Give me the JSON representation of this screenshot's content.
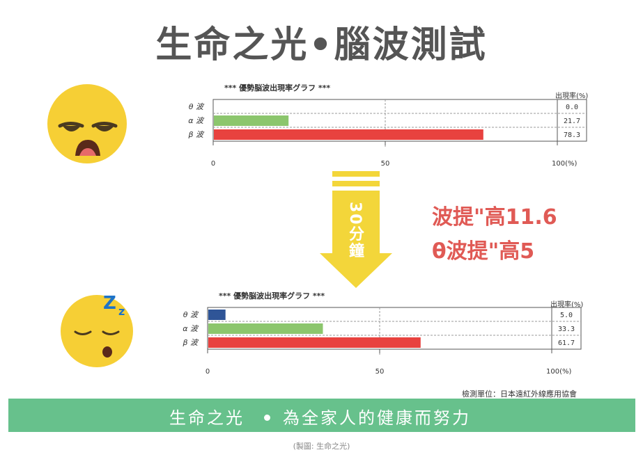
{
  "title": "生命之光•腦波測試",
  "charts_meta": {
    "chart_title": "***  優勢脳波出現率グラフ  ***",
    "rate_header": "出現率",
    "rate_unit": "(%)",
    "xticks": [
      "0",
      "50",
      "100"
    ],
    "x_end_unit": "(%)"
  },
  "chart_data": [
    {
      "type": "bar",
      "title": "***  優勢脳波出現率グラフ  ***",
      "categories": [
        "θ 波",
        "α 波",
        "β 波"
      ],
      "values": [
        0.0,
        21.7,
        78.3
      ],
      "value_labels": [
        "0.0",
        "21.7",
        "78.3"
      ],
      "colors": [
        "#2f5597",
        "#8cc66d",
        "#e8423f"
      ],
      "xlim": [
        0,
        100
      ],
      "xlabel": "",
      "ylabel": ""
    },
    {
      "type": "bar",
      "title": "***  優勢脳波出現率グラフ  ***",
      "categories": [
        "θ 波",
        "α 波",
        "β 波"
      ],
      "values": [
        5.0,
        33.3,
        61.7
      ],
      "value_labels": [
        "5.0",
        "33.3",
        "61.7"
      ],
      "colors": [
        "#2f5597",
        "#8cc66d",
        "#e8423f"
      ],
      "xlim": [
        0,
        100
      ],
      "xlabel": "",
      "ylabel": ""
    }
  ],
  "arrow_label": "30分鐘",
  "notes": [
    "波提\"高11.6",
    "θ波提\"高5"
  ],
  "caption": "檢測單位：日本遠紅外線應用協會",
  "banner": {
    "left": "生命之光",
    "right": "為全家人的健康而努力"
  },
  "credit": "(製圖: 生命之光)",
  "colors": {
    "banner": "#67c18c",
    "note": "#e05a55",
    "arrow": "#f3d63a"
  },
  "icons": [
    "tired-face-icon",
    "sleeping-face-icon",
    "down-arrow-icon"
  ]
}
